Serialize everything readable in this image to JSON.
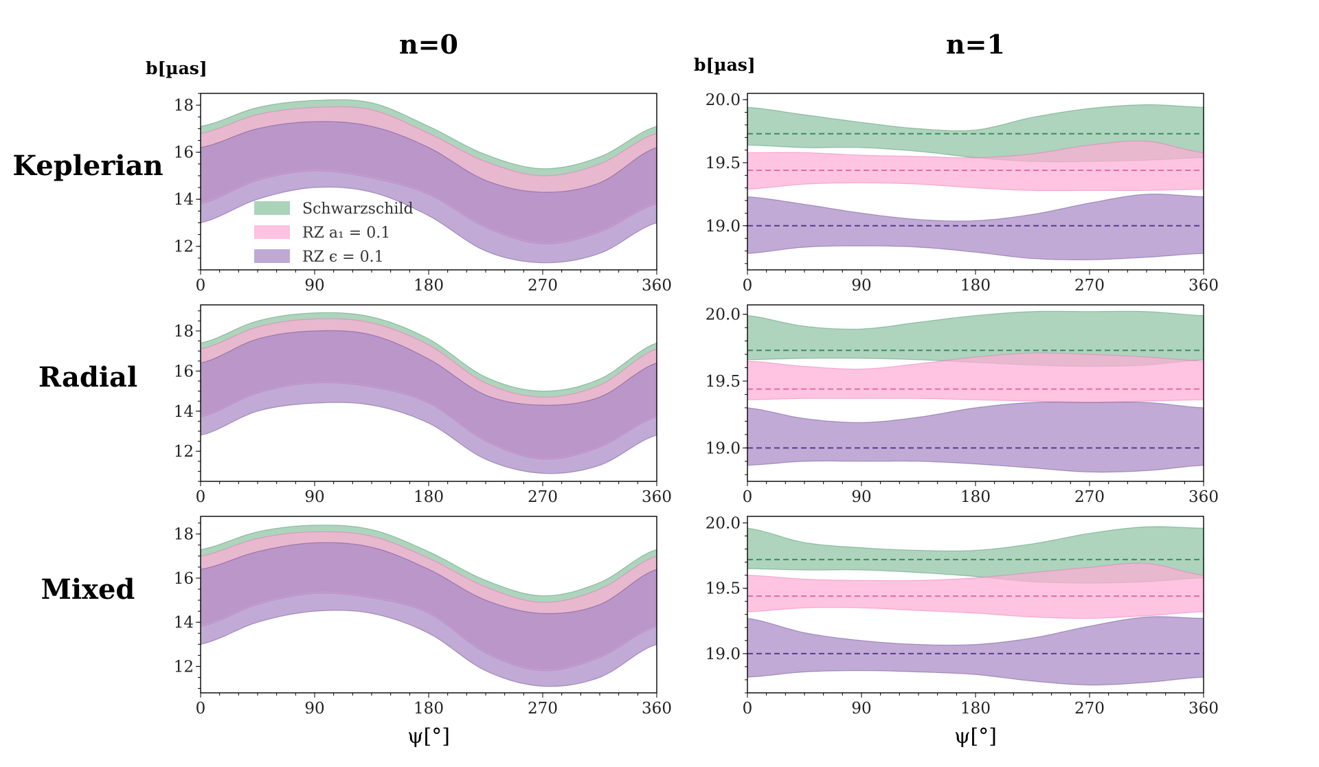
{
  "figure": {
    "col_titles": [
      "n=0",
      "n=1"
    ],
    "row_labels": [
      "Keplerian",
      "Radial",
      "Mixed"
    ],
    "ylabel": "b[µas]",
    "xlabel": "ψ[°]",
    "legend": {
      "placement": "lower-left of top-left panel",
      "entries": [
        "Schwarzschild",
        "RZ a₁ = 0.1",
        "RZ ϵ = 0.1"
      ]
    },
    "colors": {
      "schwarzschild_fill": "#8fc4a3",
      "schwarzschild_line": "#3f8a5f",
      "rz_a1_fill": "#ffadd6",
      "rz_a1_line": "#e56aa8",
      "rz_eps_fill": "#a98bc6",
      "rz_eps_line": "#5b3a8a"
    }
  },
  "chart_data": [
    {
      "type": "area",
      "panel": "Keplerian n=0",
      "xlim": [
        0,
        360
      ],
      "ylim": [
        11,
        18.5
      ],
      "xticks": [
        0,
        90,
        180,
        270,
        360
      ],
      "yticks": [
        12,
        14,
        16,
        18
      ],
      "x": [
        0,
        45,
        90,
        135,
        180,
        225,
        270,
        315,
        360
      ],
      "series": [
        {
          "name": "Schwarzschild",
          "lower": [
            13.9,
            14.9,
            15.3,
            15.0,
            14.3,
            12.9,
            12.2,
            12.7,
            13.9
          ],
          "upper": [
            17.1,
            17.9,
            18.2,
            18.1,
            17.1,
            15.9,
            15.3,
            15.8,
            17.1
          ]
        },
        {
          "name": "RZ a₁ = 0.1",
          "lower": [
            13.8,
            14.8,
            15.2,
            14.9,
            14.2,
            12.8,
            12.1,
            12.6,
            13.8
          ],
          "upper": [
            16.8,
            17.6,
            17.9,
            17.8,
            16.8,
            15.6,
            15.0,
            15.5,
            16.8
          ]
        },
        {
          "name": "RZ ϵ = 0.1",
          "lower": [
            13.0,
            14.0,
            14.5,
            14.3,
            13.3,
            11.8,
            11.3,
            11.7,
            13.0
          ],
          "upper": [
            16.2,
            17.0,
            17.3,
            17.1,
            16.2,
            14.8,
            14.3,
            14.7,
            16.2
          ]
        }
      ]
    },
    {
      "type": "area",
      "panel": "Keplerian n=1",
      "xlim": [
        0,
        360
      ],
      "ylim": [
        18.65,
        20.05
      ],
      "xticks": [
        0,
        90,
        180,
        270,
        360
      ],
      "yticks": [
        19.0,
        19.5,
        20.0
      ],
      "x": [
        0,
        45,
        90,
        135,
        180,
        225,
        270,
        315,
        360
      ],
      "series": [
        {
          "name": "Schwarzschild",
          "center": 19.73,
          "lower": [
            19.64,
            19.62,
            19.62,
            19.59,
            19.54,
            19.51,
            19.51,
            19.52,
            19.54
          ],
          "upper": [
            19.94,
            19.88,
            19.82,
            19.77,
            19.76,
            19.86,
            19.93,
            19.96,
            19.94
          ]
        },
        {
          "name": "RZ a₁ = 0.1",
          "center": 19.44,
          "lower": [
            19.29,
            19.33,
            19.34,
            19.33,
            19.3,
            19.28,
            19.28,
            19.28,
            19.29
          ],
          "upper": [
            19.58,
            19.58,
            19.56,
            19.55,
            19.54,
            19.57,
            19.64,
            19.67,
            19.58
          ]
        },
        {
          "name": "RZ ϵ = 0.1",
          "center": 19.0,
          "lower": [
            18.78,
            18.83,
            18.84,
            18.83,
            18.79,
            18.74,
            18.73,
            18.75,
            18.78
          ],
          "upper": [
            19.23,
            19.17,
            19.1,
            19.05,
            19.04,
            19.09,
            19.18,
            19.25,
            19.23
          ]
        }
      ]
    },
    {
      "type": "area",
      "panel": "Radial n=0",
      "xlim": [
        0,
        360
      ],
      "ylim": [
        10.5,
        19.3
      ],
      "xticks": [
        0,
        90,
        180,
        270,
        360
      ],
      "yticks": [
        12,
        14,
        16,
        18
      ],
      "x": [
        0,
        45,
        90,
        135,
        180,
        225,
        270,
        315,
        360
      ],
      "series": [
        {
          "name": "Schwarzschild",
          "lower": [
            13.8,
            15.0,
            15.5,
            15.3,
            14.5,
            12.6,
            11.7,
            12.3,
            13.8
          ],
          "upper": [
            17.4,
            18.5,
            18.9,
            18.7,
            17.6,
            15.7,
            15.0,
            15.6,
            17.4
          ]
        },
        {
          "name": "RZ a₁ = 0.1",
          "lower": [
            13.7,
            14.9,
            15.4,
            15.2,
            14.4,
            12.5,
            11.6,
            12.2,
            13.7
          ],
          "upper": [
            17.1,
            18.2,
            18.6,
            18.4,
            17.3,
            15.4,
            14.7,
            15.3,
            17.1
          ]
        },
        {
          "name": "RZ ϵ = 0.1",
          "lower": [
            12.8,
            14.0,
            14.4,
            14.3,
            13.4,
            11.6,
            10.9,
            11.3,
            12.8
          ],
          "upper": [
            16.4,
            17.6,
            18.0,
            17.8,
            16.6,
            14.8,
            14.3,
            14.7,
            16.4
          ]
        }
      ]
    },
    {
      "type": "area",
      "panel": "Radial n=1",
      "xlim": [
        0,
        360
      ],
      "ylim": [
        18.75,
        20.07
      ],
      "xticks": [
        0,
        90,
        180,
        270,
        360
      ],
      "yticks": [
        19.0,
        19.5,
        20.0
      ],
      "x": [
        0,
        45,
        90,
        135,
        180,
        225,
        270,
        315,
        360
      ],
      "series": [
        {
          "name": "Schwarzschild",
          "center": 19.73,
          "lower": [
            19.66,
            19.67,
            19.67,
            19.66,
            19.64,
            19.62,
            19.61,
            19.62,
            19.66
          ],
          "upper": [
            19.99,
            19.91,
            19.89,
            19.94,
            19.99,
            20.02,
            20.02,
            20.02,
            19.99
          ]
        },
        {
          "name": "RZ a₁ = 0.1",
          "center": 19.44,
          "lower": [
            19.36,
            19.37,
            19.37,
            19.37,
            19.36,
            19.35,
            19.34,
            19.35,
            19.36
          ],
          "upper": [
            19.65,
            19.61,
            19.59,
            19.63,
            19.68,
            19.71,
            19.7,
            19.68,
            19.65
          ]
        },
        {
          "name": "RZ ϵ = 0.1",
          "center": 19.0,
          "lower": [
            18.87,
            18.9,
            18.9,
            18.9,
            18.88,
            18.85,
            18.82,
            18.83,
            18.87
          ],
          "upper": [
            19.3,
            19.22,
            19.19,
            19.23,
            19.3,
            19.34,
            19.34,
            19.34,
            19.3
          ]
        }
      ]
    },
    {
      "type": "area",
      "panel": "Mixed n=0",
      "xlim": [
        0,
        360
      ],
      "ylim": [
        10.8,
        18.8
      ],
      "xticks": [
        0,
        90,
        180,
        270,
        360
      ],
      "yticks": [
        12,
        14,
        16,
        18
      ],
      "x": [
        0,
        45,
        90,
        135,
        180,
        225,
        270,
        315,
        360
      ],
      "series": [
        {
          "name": "Schwarzschild",
          "lower": [
            13.9,
            14.9,
            15.4,
            15.2,
            14.5,
            12.7,
            11.9,
            12.5,
            13.9
          ],
          "upper": [
            17.3,
            18.1,
            18.4,
            18.2,
            17.2,
            15.9,
            15.2,
            15.8,
            17.3
          ]
        },
        {
          "name": "RZ a₁ = 0.1",
          "lower": [
            13.8,
            14.8,
            15.3,
            15.1,
            14.4,
            12.6,
            11.8,
            12.4,
            13.8
          ],
          "upper": [
            17.0,
            17.8,
            18.1,
            17.9,
            16.9,
            15.6,
            14.9,
            15.5,
            17.0
          ]
        },
        {
          "name": "RZ ϵ = 0.1",
          "lower": [
            13.0,
            14.0,
            14.5,
            14.4,
            13.5,
            11.8,
            11.1,
            11.5,
            13.0
          ],
          "upper": [
            16.4,
            17.2,
            17.6,
            17.4,
            16.4,
            15.0,
            14.4,
            14.8,
            16.4
          ]
        }
      ]
    },
    {
      "type": "area",
      "panel": "Mixed n=1",
      "xlim": [
        0,
        360
      ],
      "ylim": [
        18.7,
        20.05
      ],
      "xticks": [
        0,
        90,
        180,
        270,
        360
      ],
      "yticks": [
        19.0,
        19.5,
        20.0
      ],
      "x": [
        0,
        45,
        90,
        135,
        180,
        225,
        270,
        315,
        360
      ],
      "series": [
        {
          "name": "Schwarzschild",
          "center": 19.72,
          "lower": [
            19.65,
            19.64,
            19.64,
            19.62,
            19.59,
            19.55,
            19.54,
            19.55,
            19.58
          ],
          "upper": [
            19.96,
            19.85,
            19.81,
            19.79,
            19.79,
            19.84,
            19.92,
            19.97,
            19.96
          ]
        },
        {
          "name": "RZ a₁ = 0.1",
          "center": 19.44,
          "lower": [
            19.32,
            19.35,
            19.35,
            19.33,
            19.31,
            19.28,
            19.27,
            19.29,
            19.32
          ],
          "upper": [
            19.6,
            19.57,
            19.56,
            19.56,
            19.58,
            19.62,
            19.66,
            19.69,
            19.6
          ]
        },
        {
          "name": "RZ ϵ = 0.1",
          "center": 19.0,
          "lower": [
            18.82,
            18.86,
            18.87,
            18.86,
            18.84,
            18.79,
            18.76,
            18.78,
            18.82
          ],
          "upper": [
            19.27,
            19.16,
            19.1,
            19.07,
            19.07,
            19.12,
            19.21,
            19.28,
            19.27
          ]
        }
      ]
    }
  ]
}
